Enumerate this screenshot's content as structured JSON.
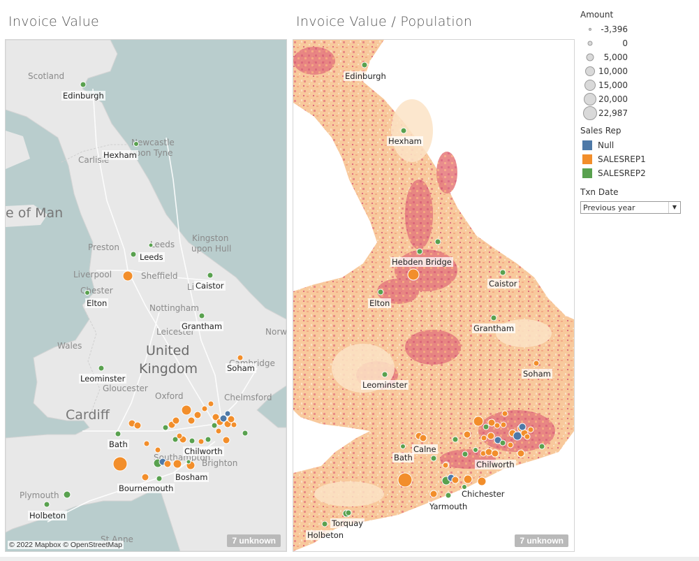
{
  "titles": {
    "left": "Invoice Value",
    "right": "Invoice Value / Population"
  },
  "left_map": {
    "copyright": "© 2022 Mapbox © OpenStreetMap",
    "unknown_badge": "7 unknown",
    "base_labels": {
      "scotland": "Scotland",
      "newcastle": "Newcastle",
      "upon_tyne": "upon Tyne",
      "carlisle": "Carlisle",
      "isle_of_man": "e of Man",
      "preston": "Preston",
      "leeds_base": "Leeds",
      "kingston": "Kingston",
      "upon_hull": "upon Hull",
      "liverpool": "Liverpool",
      "sheffield": "Sheffield",
      "chester": "Chester",
      "li": "Li",
      "nottingham": "Nottingham",
      "leicester": "Leicester",
      "norw": "Norw",
      "wales": "Wales",
      "united": "United",
      "kingdom": "Kingdom",
      "cambridge": "Cambridge",
      "gloucester": "Gloucester",
      "oxford": "Oxford",
      "chelmsford": "Chelmsford",
      "cardiff": "Cardiff",
      "southampton": "Southampton",
      "brighton": "Brighton",
      "plymouth": "Plymouth",
      "st_anne": "St Anne"
    },
    "labels": {
      "edinburgh": "Edinburgh",
      "hexham": "Hexham",
      "leeds": "Leeds",
      "caistor": "Caistor",
      "elton": "Elton",
      "grantham": "Grantham",
      "soham": "Soham",
      "leominster": "Leominster",
      "bath": "Bath",
      "chilworth": "Chilworth",
      "bosham": "Bosham",
      "bournemouth": "Bournemouth",
      "holbeton": "Holbeton"
    }
  },
  "right_map": {
    "unknown_badge": "7 unknown",
    "labels": {
      "edinburgh": "Edinburgh",
      "hexham": "Hexham",
      "hebden_bridge": "Hebden Bridge",
      "caistor": "Caistor",
      "elton": "Elton",
      "grantham": "Grantham",
      "leominster": "Leominster",
      "soham": "Soham",
      "calne": "Calne",
      "bath": "Bath",
      "chilworth": "Chilworth",
      "chichester": "Chichester",
      "yarmouth": "Yarmouth",
      "torquay": "Torquay",
      "holbeton": "Holbeton"
    }
  },
  "legend": {
    "amount_title": "Amount",
    "amount_values": [
      "-3,396",
      "0",
      "5,000",
      "10,000",
      "15,000",
      "20,000",
      "22,987"
    ],
    "sales_rep_title": "Sales Rep",
    "sales_reps": [
      {
        "label": "Null",
        "color": "#4e79a7"
      },
      {
        "label": "SALESREP1",
        "color": "#f28e2b"
      },
      {
        "label": "SALESREP2",
        "color": "#59a14f"
      }
    ],
    "txn_date_title": "Txn Date",
    "txn_date_value": "Previous year"
  },
  "colors": {
    "null": "#4e79a7",
    "rep1": "#f28e2b",
    "rep2": "#59a14f",
    "sea_left": "#b8cccc",
    "land_left": "#e9e9e9",
    "land_right": "#f9d4a6",
    "density_right": "#de6c7e"
  }
}
